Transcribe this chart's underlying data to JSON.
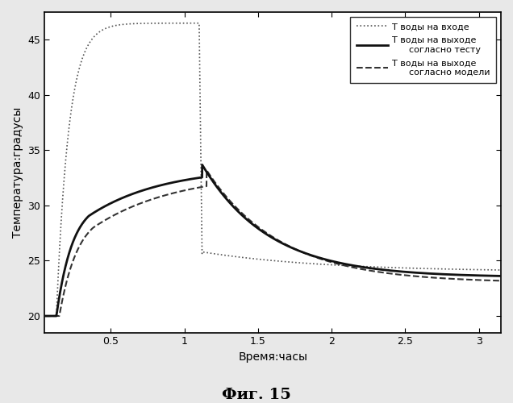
{
  "title": "Фиг. 15",
  "xlabel": "Время:часы",
  "ylabel": "Температура:градусы",
  "xlim": [
    0.05,
    3.15
  ],
  "ylim": [
    18.5,
    47.5
  ],
  "xticks": [
    0.5,
    1.0,
    1.5,
    2.0,
    2.5,
    3.0
  ],
  "xticklabels": [
    "0.5",
    "1",
    "1.5",
    "2",
    "2.5",
    "3"
  ],
  "yticks": [
    20,
    25,
    30,
    35,
    40,
    45
  ],
  "bg_color": "#ffffff",
  "fig_color": "#e8e8e8",
  "legend_labels": [
    "T воды на входе",
    "T воды на выходе\n      согласно тесту",
    "T воды на выходе\n      согласно модели"
  ],
  "inlet_color": "#555555",
  "outlet_test_color": "#111111",
  "outlet_model_color": "#333333"
}
